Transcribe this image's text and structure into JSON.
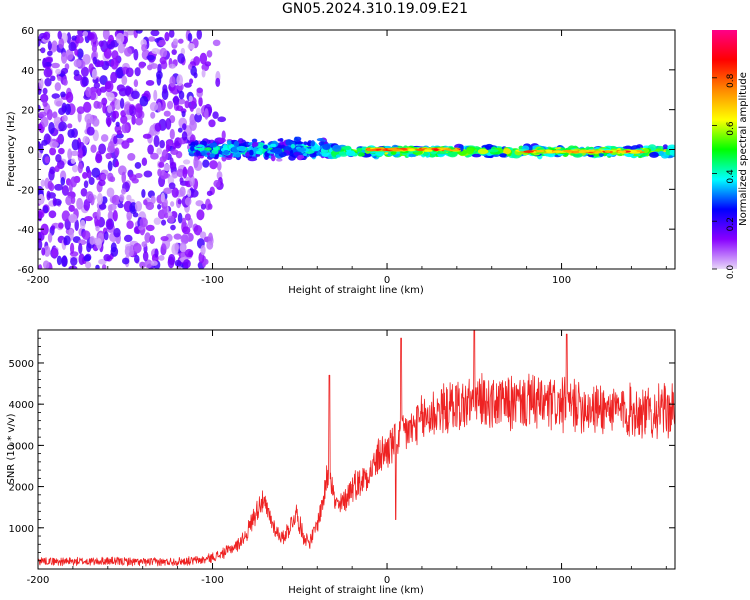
{
  "figure": {
    "title": "GN05.2024.310.19.09.E21"
  },
  "chart_data": [
    {
      "type": "heatmap",
      "xlabel": "Height of straight line (km)",
      "ylabel": "Frequency (Hz)",
      "xlim": [
        -200,
        165
      ],
      "ylim": [
        -60,
        60
      ],
      "xticks": [
        -200,
        -100,
        0,
        100
      ],
      "yticks": [
        -60,
        -40,
        -20,
        0,
        20,
        40,
        60
      ],
      "grid": false,
      "colorbar": {
        "label": "Normalized spectral amplitude",
        "range": [
          0,
          1
        ],
        "ticks": [
          0.0,
          0.2,
          0.4,
          0.6,
          0.8
        ],
        "colormap": [
          "#e8d8f8",
          "#8800ff",
          "#0000ff",
          "#00ffff",
          "#00ff00",
          "#ffff00",
          "#ff8800",
          "#ff0000",
          "#ff0088"
        ]
      },
      "features": [
        {
          "x_range": [
            -200,
            -90
          ],
          "freq_range": [
            -60,
            60
          ],
          "amplitude": 0.15,
          "pattern": "scattered noise"
        },
        {
          "x_range": [
            -112,
            -30
          ],
          "center_freq": 0,
          "half_width_hz": 6,
          "amplitude": 0.35,
          "pattern": "clumpy band"
        },
        {
          "x_range": [
            -30,
            165
          ],
          "center_freq": -1,
          "half_width_hz": 3,
          "amplitude": 0.55,
          "pattern": "narrow band"
        },
        {
          "x_range": [
            -10,
            40
          ],
          "center_freq": 0,
          "half_width_hz": 1,
          "amplitude": 0.85,
          "pattern": "hot core"
        },
        {
          "x_range": [
            75,
            145
          ],
          "center_freq": -1,
          "half_width_hz": 1,
          "amplitude": 0.8,
          "pattern": "hot core"
        }
      ]
    },
    {
      "type": "line",
      "xlabel": "Height of straight line (km)",
      "ylabel": "SNR (10 * v/v)",
      "xlim": [
        -200,
        165
      ],
      "ylim": [
        0,
        5800
      ],
      "xticks": [
        -200,
        -100,
        0,
        100
      ],
      "yticks": [
        1000,
        2000,
        3000,
        4000,
        5000
      ],
      "grid": false,
      "series": [
        {
          "color": "#ee2222",
          "noise_fraction": 0.12,
          "x": [
            -200,
            -180,
            -160,
            -140,
            -120,
            -105,
            -95,
            -85,
            -80,
            -76,
            -72,
            -68,
            -64,
            -60,
            -56,
            -52,
            -48,
            -44,
            -40,
            -36,
            -33,
            -30,
            -27,
            -24,
            -20,
            -15,
            -10,
            -5,
            0,
            5,
            8,
            10,
            15,
            20,
            25,
            30,
            40,
            50,
            60,
            70,
            80,
            90,
            100,
            110,
            120,
            130,
            140,
            150,
            160,
            165
          ],
          "values": [
            200,
            180,
            190,
            170,
            180,
            220,
            350,
            600,
            900,
            1300,
            1700,
            1350,
            950,
            750,
            1000,
            1350,
            800,
            650,
            1100,
            1800,
            2600,
            1600,
            1500,
            1700,
            2000,
            2150,
            2350,
            2700,
            2900,
            3100,
            3200,
            3350,
            3400,
            3600,
            3750,
            3850,
            3950,
            4050,
            4050,
            4000,
            4050,
            4000,
            3950,
            4000,
            3900,
            3850,
            3850,
            3800,
            3850,
            3850
          ]
        }
      ],
      "spikes": [
        {
          "x": -33,
          "value": 4700
        },
        {
          "x": 8,
          "value": 5600
        },
        {
          "x": 50,
          "value": 5800
        },
        {
          "x": 103,
          "value": 5700
        },
        {
          "x": 5,
          "value": 1200
        }
      ]
    }
  ]
}
